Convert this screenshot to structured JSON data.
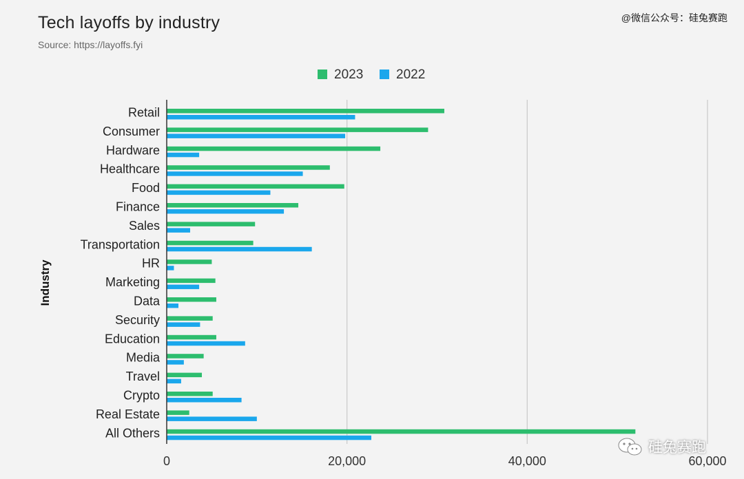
{
  "header": {
    "title": "Tech layoffs by industry",
    "subtitle": "Source: https://layoffs.fyi",
    "watermark_top": "@微信公众号：硅兔赛跑",
    "watermark_bottom": "硅兔赛跑"
  },
  "colors": {
    "s2023": "#2dbd6e",
    "s2022": "#1aa7ec",
    "grid": "#cccccc",
    "axis": "#333333"
  },
  "chart_data": {
    "type": "bar",
    "orientation": "horizontal",
    "title": "Tech layoffs by industry",
    "subtitle": "Source: https://layoffs.fyi",
    "ylabel": "Industry",
    "xlabel": "",
    "xlim": [
      0,
      60000
    ],
    "x_ticks": [
      0,
      20000,
      40000,
      60000
    ],
    "x_tick_labels": [
      "0",
      "20,000",
      "40,000",
      "60,000"
    ],
    "grid": true,
    "legend_position": "top-center",
    "categories": [
      "Retail",
      "Consumer",
      "Hardware",
      "Healthcare",
      "Food",
      "Finance",
      "Sales",
      "Transportation",
      "HR",
      "Marketing",
      "Data",
      "Security",
      "Education",
      "Media",
      "Travel",
      "Crypto",
      "Real Estate",
      "All Others"
    ],
    "series": [
      {
        "name": "2023",
        "color": "#2dbd6e",
        "values": [
          30800,
          29000,
          23700,
          18100,
          19700,
          14600,
          9800,
          9600,
          5000,
          5400,
          5500,
          5100,
          5500,
          4100,
          3900,
          5100,
          2500,
          52000
        ]
      },
      {
        "name": "2022",
        "color": "#1aa7ec",
        "values": [
          20900,
          19800,
          3600,
          15100,
          11500,
          13000,
          2600,
          16100,
          800,
          3600,
          1300,
          3700,
          8700,
          1900,
          1600,
          8300,
          10000,
          22700
        ]
      }
    ]
  }
}
